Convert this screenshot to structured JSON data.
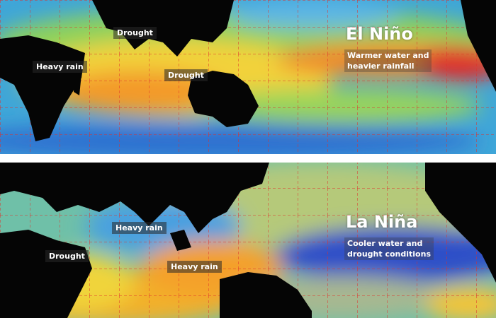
{
  "panels": [
    {
      "title": "El Niño",
      "description": [
        "Warmer water and",
        "heavier rainfall"
      ],
      "labels": [
        "Drought",
        "Heavy rain",
        "Drought"
      ]
    },
    {
      "title": "La Niña",
      "description": [
        "Cooler water and",
        "drought conditions"
      ],
      "labels": [
        "Heavy rain",
        "Drought",
        "Heavy rain"
      ]
    }
  ]
}
